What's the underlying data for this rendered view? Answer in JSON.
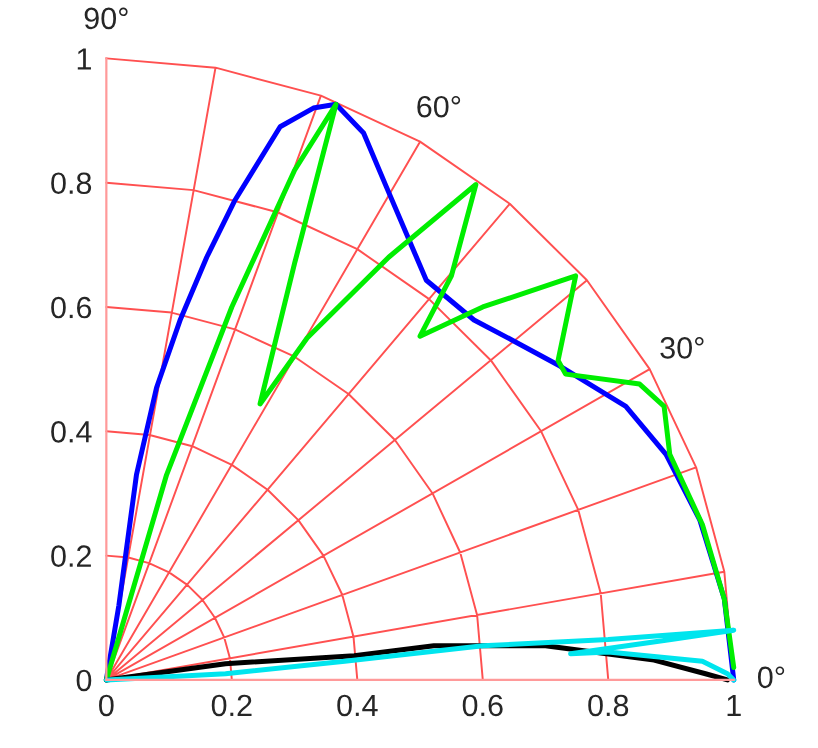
{
  "chart_data": {
    "type": "line",
    "xlim": [
      0,
      1
    ],
    "ylim": [
      0,
      1
    ],
    "xticks": [
      0,
      0.2,
      0.4,
      0.6,
      0.8,
      1
    ],
    "yticks": [
      0,
      0.2,
      0.4,
      0.6,
      0.8,
      1
    ],
    "grid": false,
    "annotations": [
      "0°",
      "30°",
      "60°",
      "90°"
    ],
    "series": [
      {
        "color": "#ff5050",
        "x": [
          0.2,
          0.197,
          0.188,
          0.173,
          0.153,
          0.129,
          0.1,
          0.068,
          0.035,
          0,
          null,
          0.4,
          0.394,
          0.376,
          0.346,
          0.306,
          0.257,
          0.2,
          0.137,
          0.069,
          0,
          null,
          0.6,
          0.591,
          0.564,
          0.52,
          0.46,
          0.386,
          0.3,
          0.205,
          0.104,
          0,
          null,
          0.8,
          0.788,
          0.752,
          0.693,
          0.613,
          0.514,
          0.4,
          0.274,
          0.139,
          0,
          null,
          1,
          0.985,
          0.94,
          0.866,
          0.766,
          0.643,
          0.5,
          0.342,
          0.174,
          0,
          null,
          0,
          0.985,
          null,
          0,
          0.94,
          null,
          0,
          0.866,
          null,
          0,
          0.766,
          null,
          0,
          0.643,
          null,
          0,
          0.5,
          null,
          0,
          0.342,
          null,
          0,
          0.174
        ],
        "values": [
          0,
          0.035,
          0.068,
          0.1,
          0.129,
          0.153,
          0.173,
          0.188,
          0.197,
          0.2,
          null,
          0,
          0.069,
          0.137,
          0.2,
          0.257,
          0.306,
          0.346,
          0.376,
          0.394,
          0.4,
          null,
          0,
          0.104,
          0.205,
          0.3,
          0.386,
          0.46,
          0.52,
          0.564,
          0.591,
          0.6,
          null,
          0,
          0.139,
          0.274,
          0.4,
          0.514,
          0.613,
          0.693,
          0.752,
          0.788,
          0.8,
          null,
          0,
          0.174,
          0.342,
          0.5,
          0.643,
          0.766,
          0.866,
          0.94,
          0.985,
          1,
          null,
          0,
          0.174,
          null,
          0,
          0.342,
          null,
          0,
          0.5,
          null,
          0,
          0.643,
          null,
          0,
          0.766,
          null,
          0,
          0.866,
          null,
          0,
          0.94,
          null,
          0,
          0.985
        ]
      },
      {
        "color": "#0000ff",
        "x": [
          0,
          0.02,
          0.048,
          0.08,
          0.118,
          0.16,
          0.204,
          0.277,
          0.33,
          0.366,
          0.41,
          0.446,
          0.51,
          0.586,
          0.65,
          0.723,
          0.828,
          0.892,
          0.946,
          0.985,
          1.0
        ],
        "values": [
          0,
          0.12,
          0.33,
          0.47,
          0.58,
          0.68,
          0.77,
          0.89,
          0.92,
          0.926,
          0.88,
          0.794,
          0.643,
          0.579,
          0.545,
          0.505,
          0.44,
          0.363,
          0.257,
          0.13,
          0.0
        ]
      },
      {
        "color": "#00ee00",
        "x": [
          0,
          0.096,
          0.2,
          0.3,
          0.366,
          0.3,
          0.245,
          0.32,
          0.45,
          0.589,
          0.55,
          0.5,
          0.6,
          0.748,
          0.72,
          0.732,
          0.85,
          0.889,
          0.898,
          0.95,
          0.985,
          1.0
        ],
        "values": [
          0,
          0.33,
          0.6,
          0.82,
          0.926,
          0.67,
          0.444,
          0.55,
          0.68,
          0.797,
          0.65,
          0.553,
          0.6,
          0.65,
          0.514,
          0.492,
          0.476,
          0.44,
          0.363,
          0.25,
          0.13,
          0.02
        ]
      },
      {
        "color": "#000000",
        "x": [
          0,
          0.19,
          0.395,
          0.522,
          0.7,
          0.873,
          0.955,
          0.99
        ],
        "values": [
          0,
          0.026,
          0.039,
          0.055,
          0.055,
          0.032,
          0.01,
          0
        ]
      },
      {
        "color": "#00e5ee",
        "x": [
          0,
          0.19,
          0.38,
          0.6,
          0.8,
          1.0,
          0.9,
          0.74,
          0.8,
          0.95,
          0.99,
          1.0
        ],
        "values": [
          0,
          0.01,
          0.03,
          0.055,
          0.065,
          0.08,
          0.065,
          0.042,
          0.045,
          0.03,
          0.01,
          0
        ]
      }
    ]
  }
}
